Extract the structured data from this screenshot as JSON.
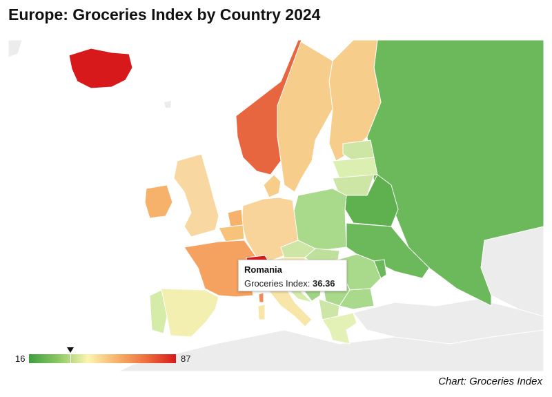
{
  "title": "Europe: Groceries Index by Country 2024",
  "source": "Chart: Groceries Index",
  "legend": {
    "min": "16",
    "max": "87",
    "marker_value": 36.36
  },
  "tooltip": {
    "country": "Romania",
    "label": "Groceries Index:",
    "value": "36.36"
  },
  "colors": {
    "no_data": "#ececec",
    "low": "#3f9f3f",
    "mid": "#fbf5b0",
    "high": "#d7191c",
    "ocean": "#ffffff"
  },
  "icons": [
    "legend-marker-icon"
  ]
}
